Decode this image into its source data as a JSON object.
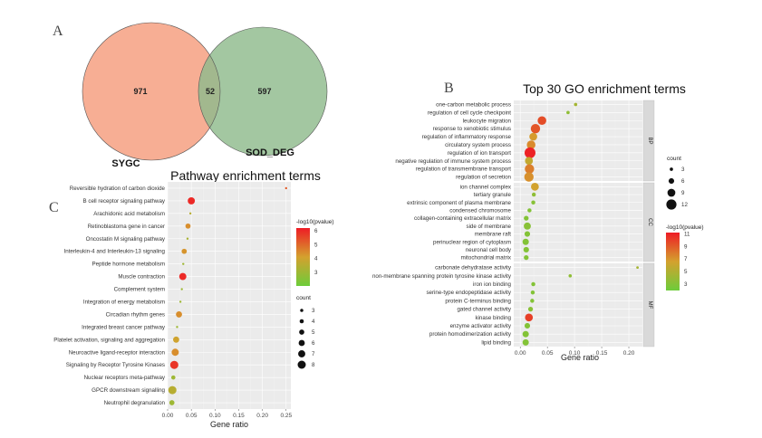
{
  "colors": {
    "low": "#6dcc3a",
    "mid": "#d4a12e",
    "high": "#ee1c25"
  },
  "venn": {
    "letter": "A",
    "set_a": {
      "name": "SYGC",
      "only": "971",
      "color": "#f6a588"
    },
    "set_b": {
      "name": "SOD_DEG",
      "only": "597",
      "color": "#8fbb8c"
    },
    "overlap": "52"
  },
  "chart_data": [
    {
      "type": "scatter",
      "letter": "C",
      "title": "Pathway enrichment terms",
      "xlabel": "Gene ratio",
      "xlim": [
        0,
        0.26
      ],
      "xticks": [
        0,
        0.05,
        0.1,
        0.15,
        0.2,
        0.25
      ],
      "xtick_labels": [
        "0.00",
        "0.05",
        "0.10",
        "0.15",
        "0.20",
        "0.25"
      ],
      "color_legend": {
        "title": "-log10(pvalue)",
        "min": 2,
        "max": 6.2,
        "ticks": [
          3,
          4,
          5,
          6
        ]
      },
      "size_legend": {
        "title": "count",
        "values": [
          3,
          4,
          5,
          6,
          7,
          8
        ]
      },
      "points": [
        {
          "term": "Reversible hydration of carbon dioxide",
          "ratio": 0.25,
          "count": 2,
          "p": 5.2
        },
        {
          "term": "B cell receptor signaling pathway",
          "ratio": 0.05,
          "count": 7,
          "p": 6.0
        },
        {
          "term": "Arachidonic acid metabolism",
          "ratio": 0.048,
          "count": 2,
          "p": 3.5
        },
        {
          "term": "Retinoblastoma gene in cancer",
          "ratio": 0.043,
          "count": 5,
          "p": 4.4
        },
        {
          "term": "Oncostatin M signaling pathway",
          "ratio": 0.042,
          "count": 2,
          "p": 3.2
        },
        {
          "term": "Interleukin-4 and Interleukin-13 signaling",
          "ratio": 0.035,
          "count": 5,
          "p": 4.3
        },
        {
          "term": "Peptide hormone metabolism",
          "ratio": 0.033,
          "count": 2,
          "p": 3.0
        },
        {
          "term": "Muscle contraction",
          "ratio": 0.032,
          "count": 7,
          "p": 6.0
        },
        {
          "term": "Complement system",
          "ratio": 0.03,
          "count": 2,
          "p": 3.0
        },
        {
          "term": "Integration of energy metabolism",
          "ratio": 0.027,
          "count": 2,
          "p": 3.0
        },
        {
          "term": "Circadian rhythm genes",
          "ratio": 0.024,
          "count": 6,
          "p": 4.4
        },
        {
          "term": "Integrated breast cancer pathway",
          "ratio": 0.02,
          "count": 2,
          "p": 3.0
        },
        {
          "term": "Platelet activation, signaling and aggregation",
          "ratio": 0.018,
          "count": 6,
          "p": 4.0
        },
        {
          "term": "Neuroactive ligand-receptor interaction",
          "ratio": 0.016,
          "count": 7,
          "p": 4.4
        },
        {
          "term": "Signaling by Receptor Tyrosine Kinases",
          "ratio": 0.014,
          "count": 8,
          "p": 5.8
        },
        {
          "term": "Nuclear receptors meta-pathway",
          "ratio": 0.012,
          "count": 4,
          "p": 3.0
        },
        {
          "term": "GPCR downstream signalling",
          "ratio": 0.01,
          "count": 8,
          "p": 3.5
        },
        {
          "term": "Neutrophil degranulation",
          "ratio": 0.009,
          "count": 5,
          "p": 3.0
        }
      ]
    },
    {
      "type": "scatter",
      "letter": "B",
      "title": "Top 30 GO enrichment terms",
      "xlabel": "Gene ratio",
      "xlim": [
        -0.012,
        0.225
      ],
      "xticks": [
        0,
        0.05,
        0.1,
        0.15,
        0.2
      ],
      "xtick_labels": [
        "0.00",
        "0.05",
        "0.10",
        "0.15",
        "0.20"
      ],
      "color_legend": {
        "title": "-log10(pvalue)",
        "min": 2,
        "max": 11.2,
        "ticks": [
          3,
          5,
          7,
          9,
          11
        ]
      },
      "size_legend": {
        "title": "count",
        "values": [
          3,
          6,
          9,
          12
        ]
      },
      "facets": [
        {
          "label": "BP",
          "points": [
            {
              "term": "one-carbon metabolic process",
              "ratio": 0.102,
              "count": 3,
              "p": 4.5
            },
            {
              "term": "regulation of cell cycle checkpoint",
              "ratio": 0.088,
              "count": 3,
              "p": 3.5
            },
            {
              "term": "leukocyte migration",
              "ratio": 0.04,
              "count": 10,
              "p": 9.5
            },
            {
              "term": "response to xenobiotic stimulus",
              "ratio": 0.028,
              "count": 11,
              "p": 9.2
            },
            {
              "term": "regulation of inflammatory response",
              "ratio": 0.024,
              "count": 9,
              "p": 6.8
            },
            {
              "term": "circulatory system process",
              "ratio": 0.02,
              "count": 10,
              "p": 7.4
            },
            {
              "term": "regulation of ion transport",
              "ratio": 0.018,
              "count": 13,
              "p": 11.0
            },
            {
              "term": "negative regulation of immune system process",
              "ratio": 0.016,
              "count": 9,
              "p": 5.8
            },
            {
              "term": "regulation of transmembrane transport",
              "ratio": 0.017,
              "count": 11,
              "p": 7.8
            },
            {
              "term": "regulation of secretion",
              "ratio": 0.016,
              "count": 11,
              "p": 7.2
            }
          ]
        },
        {
          "label": "CC",
          "points": [
            {
              "term": "ion channel complex",
              "ratio": 0.027,
              "count": 9,
              "p": 6.5
            },
            {
              "term": "tertiary granule",
              "ratio": 0.025,
              "count": 4,
              "p": 3.5
            },
            {
              "term": "extrinsic component of plasma membrane",
              "ratio": 0.024,
              "count": 4,
              "p": 3.2
            },
            {
              "term": "condensed chromosome",
              "ratio": 0.017,
              "count": 4,
              "p": 3.0
            },
            {
              "term": "collagen-containing extracellular matrix",
              "ratio": 0.011,
              "count": 5,
              "p": 3.0
            },
            {
              "term": "side of membrane",
              "ratio": 0.013,
              "count": 8,
              "p": 3.2
            },
            {
              "term": "membrane raft",
              "ratio": 0.013,
              "count": 6,
              "p": 3.0
            },
            {
              "term": "perinuclear region of cytoplasm",
              "ratio": 0.01,
              "count": 7,
              "p": 3.0
            },
            {
              "term": "neuronal cell body",
              "ratio": 0.011,
              "count": 6,
              "p": 3.0
            },
            {
              "term": "mitochondrial matrix",
              "ratio": 0.011,
              "count": 5,
              "p": 3.0
            }
          ]
        },
        {
          "label": "MF",
          "points": [
            {
              "term": "carbonate dehydratase activity",
              "ratio": 0.216,
              "count": 2,
              "p": 4.5
            },
            {
              "term": "non-membrane spanning protein tyrosine kinase activity",
              "ratio": 0.092,
              "count": 3,
              "p": 3.5
            },
            {
              "term": "iron ion binding",
              "ratio": 0.024,
              "count": 4,
              "p": 3.0
            },
            {
              "term": "serine-type endopeptidase activity",
              "ratio": 0.023,
              "count": 4,
              "p": 3.0
            },
            {
              "term": "protein C-terminus binding",
              "ratio": 0.022,
              "count": 4,
              "p": 3.0
            },
            {
              "term": "gated channel activity",
              "ratio": 0.019,
              "count": 5,
              "p": 3.2
            },
            {
              "term": "kinase binding",
              "ratio": 0.016,
              "count": 9,
              "p": 10.0
            },
            {
              "term": "enzyme activator activity",
              "ratio": 0.013,
              "count": 6,
              "p": 3.0
            },
            {
              "term": "protein homodimerization activity",
              "ratio": 0.01,
              "count": 7,
              "p": 3.0
            },
            {
              "term": "lipid binding",
              "ratio": 0.01,
              "count": 7,
              "p": 3.0
            }
          ]
        }
      ]
    }
  ]
}
